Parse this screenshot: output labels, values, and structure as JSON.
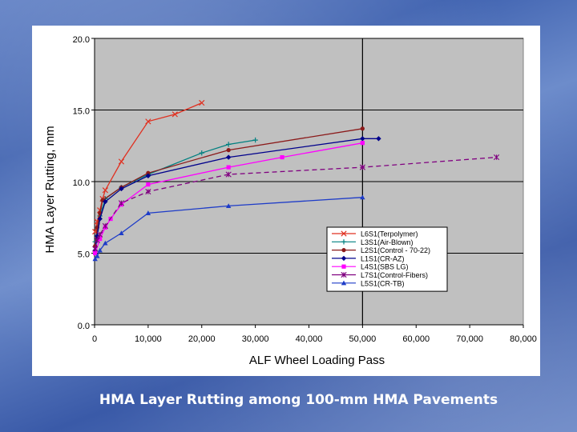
{
  "caption": "HMA Layer Rutting among 100-mm HMA Pavements",
  "chart_data": {
    "type": "line",
    "xlabel": "ALF Wheel Loading Pass",
    "ylabel": "HMA Layer Rutting, mm",
    "xlim": [
      0,
      80000
    ],
    "ylim": [
      0,
      20
    ],
    "x_ticks": [
      0,
      10000,
      20000,
      30000,
      40000,
      50000,
      60000,
      70000,
      80000
    ],
    "x_tick_labels": [
      "0",
      "10,000",
      "20,000",
      "30,000",
      "40,000",
      "50,000",
      "60,000",
      "70,000",
      "80,000"
    ],
    "y_ticks": [
      0,
      5,
      10,
      15,
      20
    ],
    "y_tick_labels": [
      "0.0",
      "5.0",
      "10.0",
      "15.0",
      "20.0"
    ],
    "grid": "horizontal",
    "plot_background": "#c0c0c0",
    "legend_position": "lower-right",
    "reference_line_x": 50000,
    "series": [
      {
        "name": "L6S1(Terpolymer)",
        "color": "#e03020",
        "marker": "x",
        "x": [
          100,
          500,
          1000,
          1500,
          2000,
          5000,
          10000,
          15000,
          20000
        ],
        "y": [
          6.5,
          7.2,
          8.0,
          8.8,
          9.4,
          11.4,
          14.2,
          14.7,
          15.5
        ]
      },
      {
        "name": "L3S1(Air-Blown)",
        "color": "#008080",
        "marker": "+",
        "x": [
          100,
          1000,
          2000,
          5000,
          10000,
          20000,
          25000,
          30000
        ],
        "y": [
          5.8,
          7.6,
          8.8,
          9.6,
          10.5,
          12.0,
          12.6,
          12.9
        ]
      },
      {
        "name": "L2S1(Control - 70-22)",
        "color": "#8b1a1a",
        "marker": "circle",
        "x": [
          100,
          500,
          1000,
          1500,
          5000,
          10000,
          25000,
          50000
        ],
        "y": [
          5.5,
          6.8,
          7.8,
          8.7,
          9.6,
          10.6,
          12.2,
          13.7
        ]
      },
      {
        "name": "L1S1(CR-AZ)",
        "color": "#00008b",
        "marker": "diamond",
        "x": [
          100,
          500,
          1000,
          2000,
          5000,
          10000,
          25000,
          50000,
          53000
        ],
        "y": [
          5.2,
          6.2,
          7.4,
          8.6,
          9.5,
          10.4,
          11.7,
          13.0,
          13.0
        ]
      },
      {
        "name": "L4S1(SBS LG)",
        "color": "#ff00ff",
        "marker": "square",
        "x": [
          100,
          1000,
          2000,
          3000,
          5000,
          10000,
          25000,
          35000,
          50000
        ],
        "y": [
          5.0,
          6.0,
          6.8,
          7.4,
          8.4,
          9.8,
          11.0,
          11.7,
          12.7
        ]
      },
      {
        "name": "L7S1(Control-Fibers)",
        "color": "#800080",
        "marker": "asterisk",
        "x": [
          100,
          500,
          1000,
          2000,
          5000,
          10000,
          25000,
          50000,
          75000
        ],
        "y": [
          5.3,
          5.9,
          6.3,
          6.9,
          8.5,
          9.3,
          10.5,
          11.0,
          11.7
        ]
      },
      {
        "name": "L5S1(CR-TB)",
        "color": "#1e3cc8",
        "marker": "triangle",
        "x": [
          100,
          500,
          1000,
          2000,
          5000,
          10000,
          25000,
          50000
        ],
        "y": [
          4.6,
          4.8,
          5.2,
          5.7,
          6.4,
          7.8,
          8.3,
          8.9
        ]
      }
    ]
  }
}
